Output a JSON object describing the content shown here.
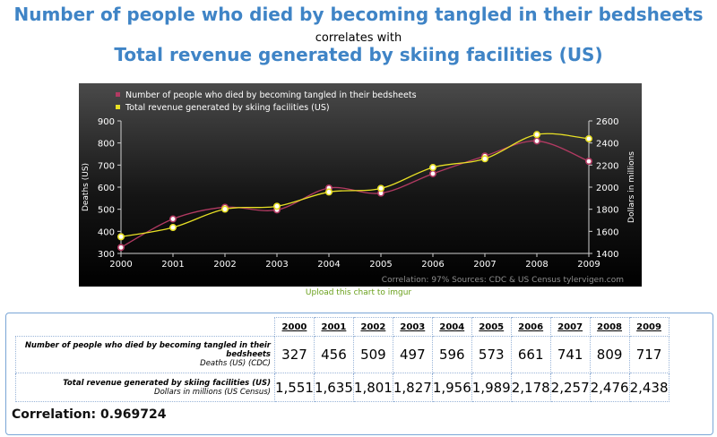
{
  "header": {
    "title_a": "Number of people who died by becoming tangled in their bedsheets",
    "correlates": "correlates with",
    "title_b": "Total revenue generated by skiing facilities (US)"
  },
  "chart_data": {
    "type": "line",
    "x": [
      2000,
      2001,
      2002,
      2003,
      2004,
      2005,
      2006,
      2007,
      2008,
      2009
    ],
    "series": [
      {
        "name": "Number of people who died by becoming tangled in their bedsheets",
        "color": "#b23a62",
        "axis": "left",
        "values": [
          327,
          456,
          509,
          497,
          596,
          573,
          661,
          741,
          809,
          717
        ]
      },
      {
        "name": "Total revenue generated by skiing facilities (US)",
        "color": "#e8e025",
        "axis": "right",
        "values": [
          1551,
          1635,
          1801,
          1827,
          1956,
          1989,
          2178,
          2257,
          2476,
          2438
        ]
      }
    ],
    "ylabel_left": "Deaths (US)",
    "ylabel_right": "Dollars in millions",
    "ylim_left": [
      300,
      900
    ],
    "yticks_left": [
      300,
      400,
      500,
      600,
      700,
      800,
      900
    ],
    "ylim_right": [
      1400,
      2600
    ],
    "yticks_right": [
      1400,
      1600,
      1800,
      2000,
      2200,
      2400,
      2600
    ],
    "footer": "Correlation: 97%      Sources: CDC & US Census    tylervigen.com"
  },
  "upload_link": "Upload this chart to imgur",
  "table": {
    "years": [
      "2000",
      "2001",
      "2002",
      "2003",
      "2004",
      "2005",
      "2006",
      "2007",
      "2008",
      "2009"
    ],
    "row1": {
      "name": "Number of people who died by becoming tangled in their bedsheets",
      "unit": "Deaths (US) (CDC)",
      "values": [
        "327",
        "456",
        "509",
        "497",
        "596",
        "573",
        "661",
        "741",
        "809",
        "717"
      ]
    },
    "row2": {
      "name": "Total revenue generated by skiing facilities (US)",
      "unit": "Dollars in millions (US Census)",
      "values": [
        "1,551",
        "1,635",
        "1,801",
        "1,827",
        "1,956",
        "1,989",
        "2,178",
        "2,257",
        "2,476",
        "2,438"
      ]
    }
  },
  "correlation": "Correlation: 0.969724"
}
